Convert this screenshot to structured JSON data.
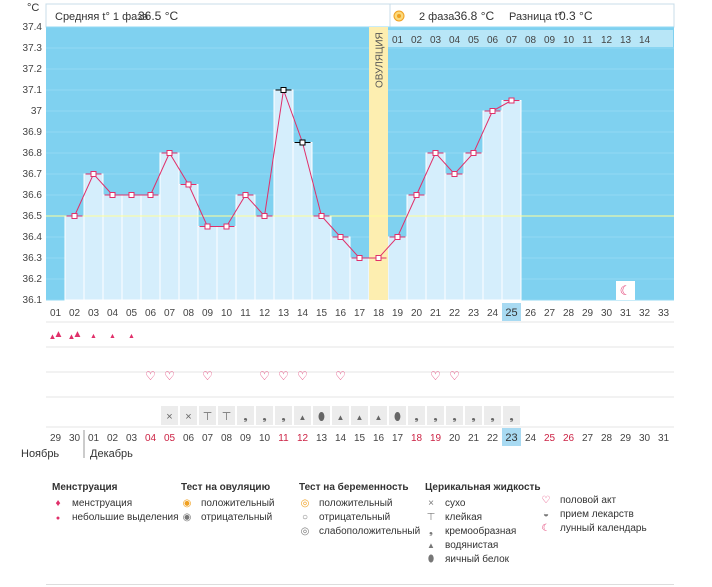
{
  "header": {
    "unit": "°C",
    "phase1_label": "Средняя t° 1 фаза",
    "phase1_value": "36.5 °C",
    "phase2_label": "2 фаза",
    "phase2_value": "36.8 °C",
    "diff_label": "Разница t°",
    "diff_value": "0.3 °C"
  },
  "ovulation_label": "ОВУЛЯЦИЯ",
  "months": {
    "november": "Ноябрь",
    "december": "Декабрь"
  },
  "colors": {
    "bg": "#7fd1f0",
    "bar": "#d5eefc",
    "line": "#e0306a",
    "ovulation": "#fdeeb0",
    "coverline": "#ffff99",
    "today": "#a8daf2",
    "weekend": "#cc2244"
  },
  "chart_data": {
    "type": "line",
    "ylim": [
      36.1,
      37.4
    ],
    "yticks": [
      "36.1",
      "36.2",
      "36.3",
      "36.4",
      "36.5",
      "36.6",
      "36.7",
      "36.8",
      "36.9",
      "37",
      "37.1",
      "37.2",
      "37.3",
      "37.4"
    ],
    "coverline": 36.5,
    "ovulation_day": 17,
    "today_day": 25,
    "cycle_days": [
      "01",
      "02",
      "03",
      "04",
      "05",
      "06",
      "07",
      "08",
      "09",
      "10",
      "11",
      "12",
      "13",
      "14",
      "15",
      "16",
      "17",
      "18",
      "19",
      "20",
      "21",
      "22",
      "23",
      "24",
      "25",
      "26",
      "27",
      "28",
      "29",
      "30",
      "31",
      "32",
      "33"
    ],
    "luteal_days": [
      "01",
      "02",
      "03",
      "04",
      "05",
      "06",
      "07",
      "08",
      "09",
      "10",
      "11",
      "12",
      "13",
      "14"
    ],
    "series": [
      {
        "values": [
          null,
          36.5,
          36.7,
          36.6,
          36.6,
          36.6,
          36.8,
          36.65,
          36.45,
          36.45,
          36.6,
          36.5,
          37.1,
          36.85,
          36.5,
          36.4,
          36.3,
          36.3,
          36.4,
          36.6,
          36.8,
          36.7,
          36.8,
          37.0,
          37.05
        ]
      }
    ],
    "marker_outlier_days": [
      13,
      14
    ],
    "menstruation": [
      {
        "day": 1,
        "type": "heavy"
      },
      {
        "day": 2,
        "type": "heavy"
      },
      {
        "day": 3,
        "type": "light"
      },
      {
        "day": 4,
        "type": "light"
      },
      {
        "day": 5,
        "type": "light"
      }
    ],
    "intercourse_days": [
      6,
      7,
      9,
      12,
      13,
      14,
      16,
      21,
      22
    ],
    "fluid": [
      {
        "day": 7,
        "type": "dry"
      },
      {
        "day": 8,
        "type": "dry"
      },
      {
        "day": 9,
        "type": "sticky"
      },
      {
        "day": 10,
        "type": "sticky"
      },
      {
        "day": 11,
        "type": "creamy"
      },
      {
        "day": 12,
        "type": "creamy"
      },
      {
        "day": 13,
        "type": "creamy"
      },
      {
        "day": 14,
        "type": "watery"
      },
      {
        "day": 15,
        "type": "eggwhite"
      },
      {
        "day": 16,
        "type": "watery"
      },
      {
        "day": 17,
        "type": "watery"
      },
      {
        "day": 18,
        "type": "watery"
      },
      {
        "day": 19,
        "type": "eggwhite"
      },
      {
        "day": 20,
        "type": "creamy"
      },
      {
        "day": 21,
        "type": "creamy"
      },
      {
        "day": 22,
        "type": "creamy"
      },
      {
        "day": 23,
        "type": "creamy"
      },
      {
        "day": 24,
        "type": "creamy"
      },
      {
        "day": 25,
        "type": "creamy"
      }
    ],
    "moon_day": 31,
    "calendar_dates": [
      "29",
      "30",
      "01",
      "02",
      "03",
      "04",
      "05",
      "06",
      "07",
      "08",
      "09",
      "10",
      "11",
      "12",
      "13",
      "14",
      "15",
      "16",
      "17",
      "18",
      "19",
      "20",
      "21",
      "22",
      "23",
      "24",
      "25",
      "26",
      "27",
      "28",
      "29",
      "30",
      "31"
    ],
    "calendar_weekend": [
      6,
      7,
      13,
      14,
      20,
      21,
      27,
      28
    ]
  },
  "legend": {
    "menstruation": {
      "title": "Менструация",
      "items": [
        "менструация",
        "небольшие выделения"
      ]
    },
    "ovulation_test": {
      "title": "Тест на овуляцию",
      "items": [
        "положительный",
        "отрицательный"
      ]
    },
    "pregnancy_test": {
      "title": "Тест на беременность",
      "items": [
        "положительный",
        "отрицательный",
        "слабоположительный"
      ]
    },
    "cervical_fluid": {
      "title": "Церикальная жидкость",
      "items": [
        "сухо",
        "клейкая",
        "кремообразная",
        "водянистая",
        "яичный белок"
      ]
    },
    "other": {
      "items": [
        "половой акт",
        "прием лекарств",
        "лунный календарь"
      ]
    }
  }
}
